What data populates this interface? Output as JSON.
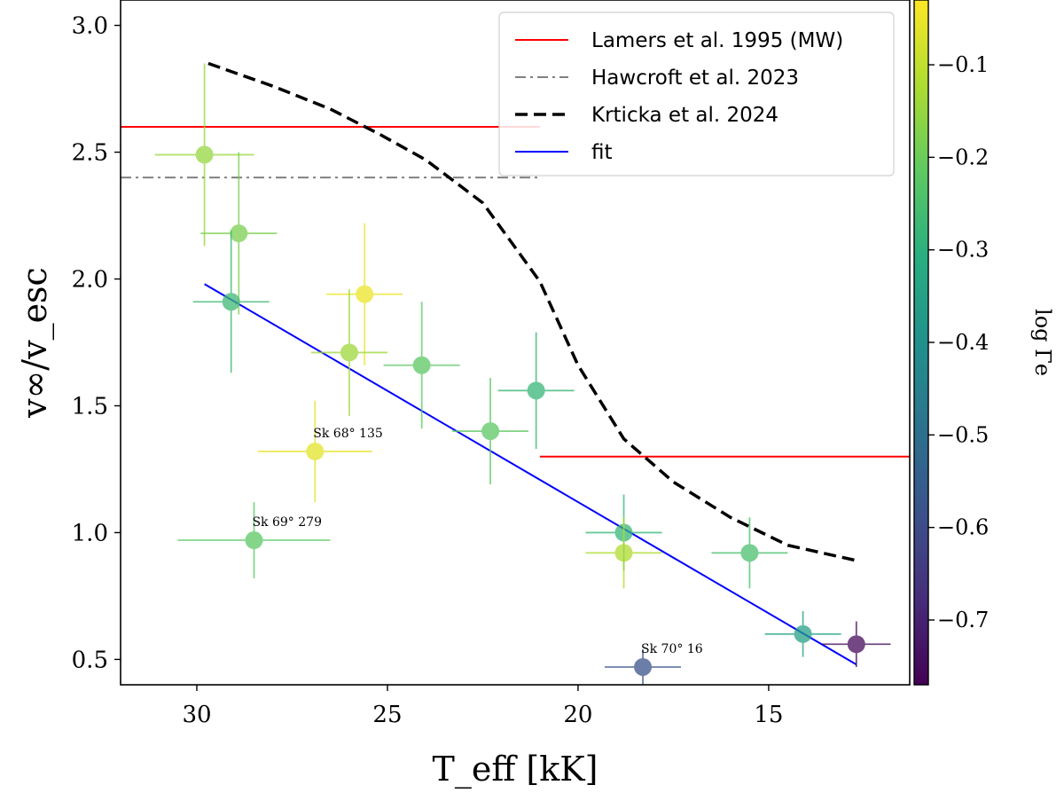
{
  "chart_data": {
    "type": "scatter",
    "xlabel": "T_eff [kK]",
    "ylabel": "v∞/v_esc",
    "colorbar_label": "log Γe",
    "xlim": [
      32,
      11.3
    ],
    "ylim": [
      0.4,
      3.1
    ],
    "x_ticks": [
      30,
      25,
      20,
      15
    ],
    "y_ticks": [
      0.5,
      1.0,
      1.5,
      2.0,
      2.5,
      3.0
    ],
    "y_tick_labels": [
      "0.5",
      "1.0",
      "1.5",
      "2.0",
      "2.5",
      "3.0"
    ],
    "colorbar_range": [
      -0.77,
      -0.03
    ],
    "colorbar_ticks": [
      -0.1,
      -0.2,
      -0.3,
      -0.4,
      -0.5,
      -0.6,
      -0.7
    ],
    "colorbar_tick_labels": [
      "−0.1",
      "−0.2",
      "−0.3",
      "−0.4",
      "−0.5",
      "−0.6",
      "−0.7"
    ],
    "colormap": [
      "#440154",
      "#472d7b",
      "#3b528b",
      "#2c728e",
      "#21918c",
      "#28ae80",
      "#5ec962",
      "#addc30",
      "#fde725"
    ],
    "legend_position": "upper right",
    "legend": [
      {
        "label": "Lamers et al. 1995 (MW)",
        "color": "#ff0000",
        "style": "solid"
      },
      {
        "label": "Hawcroft et al. 2023",
        "color": "#808080",
        "style": "dashdot"
      },
      {
        "label": "Krticka et al. 2024",
        "color": "#000000",
        "style": "dashed"
      },
      {
        "label": "fit",
        "color": "#0000ff",
        "style": "solid"
      }
    ],
    "lines": [
      {
        "name": "Lamers et al. 1995 (MW)",
        "color": "#ff0000",
        "style": "solid",
        "segments": [
          {
            "x": [
              32,
              21
            ],
            "y": [
              2.6,
              2.6
            ]
          },
          {
            "x": [
              21,
              11.3
            ],
            "y": [
              1.3,
              1.3
            ]
          }
        ]
      },
      {
        "name": "Hawcroft et al. 2023",
        "color": "#808080",
        "style": "dashdot",
        "segments": [
          {
            "x": [
              32,
              21
            ],
            "y": [
              2.4,
              2.4
            ]
          }
        ]
      },
      {
        "name": "Krticka et al. 2024",
        "color": "#000000",
        "style": "dashed",
        "segments": [
          {
            "x": [
              29.7,
              28,
              26.5,
              25.2,
              24,
              22.5,
              21,
              20,
              18.8,
              17.5,
              16,
              14.5,
              12.7
            ],
            "y": [
              2.85,
              2.76,
              2.67,
              2.57,
              2.47,
              2.3,
              1.99,
              1.66,
              1.37,
              1.2,
              1.06,
              0.95,
              0.89
            ]
          }
        ]
      },
      {
        "name": "fit",
        "color": "#0000ff",
        "style": "solid",
        "segments": [
          {
            "x": [
              29.8,
              12.7
            ],
            "y": [
              1.98,
              0.48
            ]
          }
        ]
      }
    ],
    "points": [
      {
        "x": 29.8,
        "y": 2.49,
        "xerr": 1.3,
        "yerr": 0.36,
        "loggamma": -0.15
      },
      {
        "x": 28.9,
        "y": 2.18,
        "xerr": 1.0,
        "yerr": 0.32,
        "loggamma": -0.18
      },
      {
        "x": 29.1,
        "y": 1.91,
        "xerr": 1.0,
        "yerr": 0.28,
        "loggamma": -0.27
      },
      {
        "x": 25.6,
        "y": 1.94,
        "xerr": 1.0,
        "yerr": 0.28,
        "loggamma": -0.05
      },
      {
        "x": 26.0,
        "y": 1.71,
        "xerr": 1.0,
        "yerr": 0.25,
        "loggamma": -0.14
      },
      {
        "x": 24.1,
        "y": 1.66,
        "xerr": 1.0,
        "yerr": 0.25,
        "loggamma": -0.22
      },
      {
        "x": 21.1,
        "y": 1.56,
        "xerr": 1.0,
        "yerr": 0.23,
        "loggamma": -0.28
      },
      {
        "x": 22.3,
        "y": 1.4,
        "xerr": 1.0,
        "yerr": 0.21,
        "loggamma": -0.22
      },
      {
        "x": 26.9,
        "y": 1.32,
        "xerr": 1.5,
        "yerr": 0.2,
        "loggamma": -0.06,
        "label": "Sk 68° 135"
      },
      {
        "x": 28.5,
        "y": 0.97,
        "xerr": 2.0,
        "yerr": 0.15,
        "loggamma": -0.22,
        "label": "Sk 69° 279"
      },
      {
        "x": 18.8,
        "y": 1.0,
        "xerr": 1.0,
        "yerr": 0.15,
        "loggamma": -0.28
      },
      {
        "x": 18.8,
        "y": 0.92,
        "xerr": 1.0,
        "yerr": 0.14,
        "loggamma": -0.12
      },
      {
        "x": 15.5,
        "y": 0.92,
        "xerr": 1.0,
        "yerr": 0.14,
        "loggamma": -0.25
      },
      {
        "x": 18.3,
        "y": 0.47,
        "xerr": 1.0,
        "yerr": 0.07,
        "loggamma": -0.58,
        "label": "Sk 70° 16"
      },
      {
        "x": 14.1,
        "y": 0.6,
        "xerr": 1.0,
        "yerr": 0.09,
        "loggamma": -0.35
      },
      {
        "x": 12.7,
        "y": 0.56,
        "xerr": 0.9,
        "yerr": 0.09,
        "loggamma": -0.75
      }
    ]
  }
}
